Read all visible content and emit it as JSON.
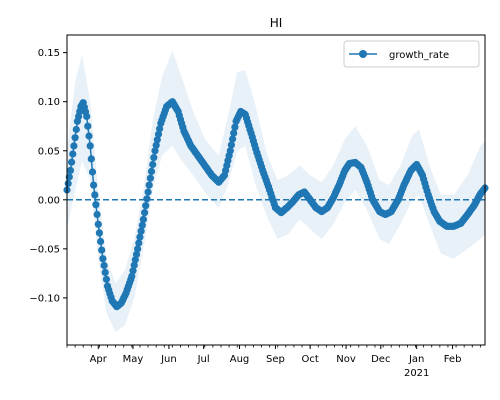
{
  "chart_data": {
    "type": "line",
    "title": "HI",
    "xlabel": "",
    "ylabel": "",
    "x_range": [
      "2020-03-05",
      "2021-03-01"
    ],
    "ylim": [
      -0.148,
      0.168
    ],
    "y_ticks": [
      -0.1,
      -0.05,
      0.0,
      0.05,
      0.1,
      0.15
    ],
    "y_tick_labels": [
      "−0.10",
      "−0.05",
      "0.00",
      "0.05",
      "0.10",
      "0.15"
    ],
    "x_ticks": [
      {
        "date": "2020-04-01",
        "label": "Apr"
      },
      {
        "date": "2020-05-01",
        "label": "May"
      },
      {
        "date": "2020-06-01",
        "label": "Jun"
      },
      {
        "date": "2020-07-01",
        "label": "Jul"
      },
      {
        "date": "2020-08-01",
        "label": "Aug"
      },
      {
        "date": "2020-09-01",
        "label": "Sep"
      },
      {
        "date": "2020-10-01",
        "label": "Oct"
      },
      {
        "date": "2020-11-01",
        "label": "Nov"
      },
      {
        "date": "2020-12-01",
        "label": "Dec"
      },
      {
        "date": "2021-01-01",
        "label": "Jan"
      },
      {
        "date": "2021-02-01",
        "label": "Feb"
      }
    ],
    "year_label": {
      "date": "2021-01-01",
      "label": "2021"
    },
    "reference_line": {
      "y": 0,
      "style": "dashed",
      "color": "#1f77b4"
    },
    "legend": {
      "position": "upper right",
      "label": "growth_rate"
    },
    "grid": false,
    "series": [
      {
        "name": "growth_rate",
        "color": "#1f77b4",
        "marker": "o",
        "band_color": "#dbe8f5",
        "points": [
          [
            "2020-03-05",
            0.01
          ],
          [
            "2020-03-08",
            0.03
          ],
          [
            "2020-03-11",
            0.055
          ],
          [
            "2020-03-14",
            0.08
          ],
          [
            "2020-03-17",
            0.095
          ],
          [
            "2020-03-19",
            0.099
          ],
          [
            "2020-03-22",
            0.085
          ],
          [
            "2020-03-25",
            0.055
          ],
          [
            "2020-03-28",
            0.015
          ],
          [
            "2020-04-01",
            -0.025
          ],
          [
            "2020-04-05",
            -0.06
          ],
          [
            "2020-04-09",
            -0.088
          ],
          [
            "2020-04-13",
            -0.103
          ],
          [
            "2020-04-17",
            -0.109
          ],
          [
            "2020-04-21",
            -0.105
          ],
          [
            "2020-04-25",
            -0.095
          ],
          [
            "2020-04-30",
            -0.078
          ],
          [
            "2020-05-05",
            -0.05
          ],
          [
            "2020-05-10",
            -0.02
          ],
          [
            "2020-05-15",
            0.015
          ],
          [
            "2020-05-20",
            0.05
          ],
          [
            "2020-05-25",
            0.078
          ],
          [
            "2020-05-30",
            0.095
          ],
          [
            "2020-06-04",
            0.1
          ],
          [
            "2020-06-09",
            0.09
          ],
          [
            "2020-06-14",
            0.07
          ],
          [
            "2020-06-20",
            0.055
          ],
          [
            "2020-06-26",
            0.045
          ],
          [
            "2020-07-02",
            0.035
          ],
          [
            "2020-07-08",
            0.025
          ],
          [
            "2020-07-14",
            0.018
          ],
          [
            "2020-07-19",
            0.025
          ],
          [
            "2020-07-24",
            0.05
          ],
          [
            "2020-07-29",
            0.08
          ],
          [
            "2020-08-02",
            0.09
          ],
          [
            "2020-08-06",
            0.087
          ],
          [
            "2020-08-11",
            0.068
          ],
          [
            "2020-08-16",
            0.048
          ],
          [
            "2020-08-21",
            0.03
          ],
          [
            "2020-08-27",
            0.01
          ],
          [
            "2020-09-01",
            -0.008
          ],
          [
            "2020-09-06",
            -0.013
          ],
          [
            "2020-09-11",
            -0.008
          ],
          [
            "2020-09-16",
            -0.002
          ],
          [
            "2020-09-21",
            0.005
          ],
          [
            "2020-09-26",
            0.008
          ],
          [
            "2020-10-01",
            0.0
          ],
          [
            "2020-10-06",
            -0.008
          ],
          [
            "2020-10-11",
            -0.012
          ],
          [
            "2020-10-16",
            -0.008
          ],
          [
            "2020-10-21",
            0.002
          ],
          [
            "2020-10-26",
            0.015
          ],
          [
            "2020-10-31",
            0.03
          ],
          [
            "2020-11-04",
            0.037
          ],
          [
            "2020-11-09",
            0.038
          ],
          [
            "2020-11-14",
            0.033
          ],
          [
            "2020-11-19",
            0.018
          ],
          [
            "2020-11-24",
            0.0
          ],
          [
            "2020-11-30",
            -0.012
          ],
          [
            "2020-12-05",
            -0.015
          ],
          [
            "2020-12-10",
            -0.012
          ],
          [
            "2020-12-16",
            0.0
          ],
          [
            "2020-12-21",
            0.015
          ],
          [
            "2020-12-27",
            0.03
          ],
          [
            "2021-01-01",
            0.036
          ],
          [
            "2021-01-06",
            0.025
          ],
          [
            "2021-01-11",
            0.005
          ],
          [
            "2021-01-16",
            -0.012
          ],
          [
            "2021-01-21",
            -0.022
          ],
          [
            "2021-01-27",
            -0.027
          ],
          [
            "2021-02-02",
            -0.027
          ],
          [
            "2021-02-08",
            -0.024
          ],
          [
            "2021-02-14",
            -0.015
          ],
          [
            "2021-02-20",
            -0.005
          ],
          [
            "2021-02-25",
            0.006
          ],
          [
            "2021-03-01",
            0.012
          ]
        ],
        "band": [
          [
            "2020-03-05",
            -0.03,
            0.05
          ],
          [
            "2020-03-12",
            0.01,
            0.12
          ],
          [
            "2020-03-18",
            0.04,
            0.148
          ],
          [
            "2020-03-25",
            0.02,
            0.1
          ],
          [
            "2020-04-01",
            -0.06,
            0.01
          ],
          [
            "2020-04-08",
            -0.115,
            -0.06
          ],
          [
            "2020-04-16",
            -0.135,
            -0.085
          ],
          [
            "2020-04-24",
            -0.128,
            -0.072
          ],
          [
            "2020-05-02",
            -0.1,
            -0.04
          ],
          [
            "2020-05-10",
            -0.05,
            0.01
          ],
          [
            "2020-05-18",
            0.01,
            0.08
          ],
          [
            "2020-05-26",
            0.045,
            0.125
          ],
          [
            "2020-06-04",
            0.055,
            0.152
          ],
          [
            "2020-06-12",
            0.04,
            0.125
          ],
          [
            "2020-06-22",
            0.025,
            0.09
          ],
          [
            "2020-07-02",
            0.008,
            0.062
          ],
          [
            "2020-07-14",
            -0.008,
            0.045
          ],
          [
            "2020-07-22",
            0.015,
            0.085
          ],
          [
            "2020-07-30",
            0.05,
            0.13
          ],
          [
            "2020-08-06",
            0.055,
            0.132
          ],
          [
            "2020-08-15",
            0.015,
            0.095
          ],
          [
            "2020-08-25",
            -0.018,
            0.045
          ],
          [
            "2020-09-03",
            -0.04,
            0.02
          ],
          [
            "2020-09-12",
            -0.035,
            0.025
          ],
          [
            "2020-09-22",
            -0.02,
            0.035
          ],
          [
            "2020-10-01",
            -0.03,
            0.025
          ],
          [
            "2020-10-11",
            -0.04,
            0.018
          ],
          [
            "2020-10-21",
            -0.025,
            0.035
          ],
          [
            "2020-10-31",
            -0.002,
            0.062
          ],
          [
            "2020-11-09",
            0.01,
            0.075
          ],
          [
            "2020-11-19",
            -0.01,
            0.055
          ],
          [
            "2020-11-30",
            -0.04,
            0.02
          ],
          [
            "2020-12-08",
            -0.045,
            0.015
          ],
          [
            "2020-12-18",
            -0.025,
            0.035
          ],
          [
            "2020-12-28",
            0.0,
            0.065
          ],
          [
            "2021-01-03",
            0.005,
            0.072
          ],
          [
            "2021-01-12",
            -0.025,
            0.035
          ],
          [
            "2021-01-22",
            -0.055,
            0.005
          ],
          [
            "2021-02-02",
            -0.06,
            0.005
          ],
          [
            "2021-02-14",
            -0.05,
            0.025
          ],
          [
            "2021-02-25",
            -0.04,
            0.055
          ],
          [
            "2021-03-01",
            -0.035,
            0.06
          ]
        ]
      }
    ]
  }
}
